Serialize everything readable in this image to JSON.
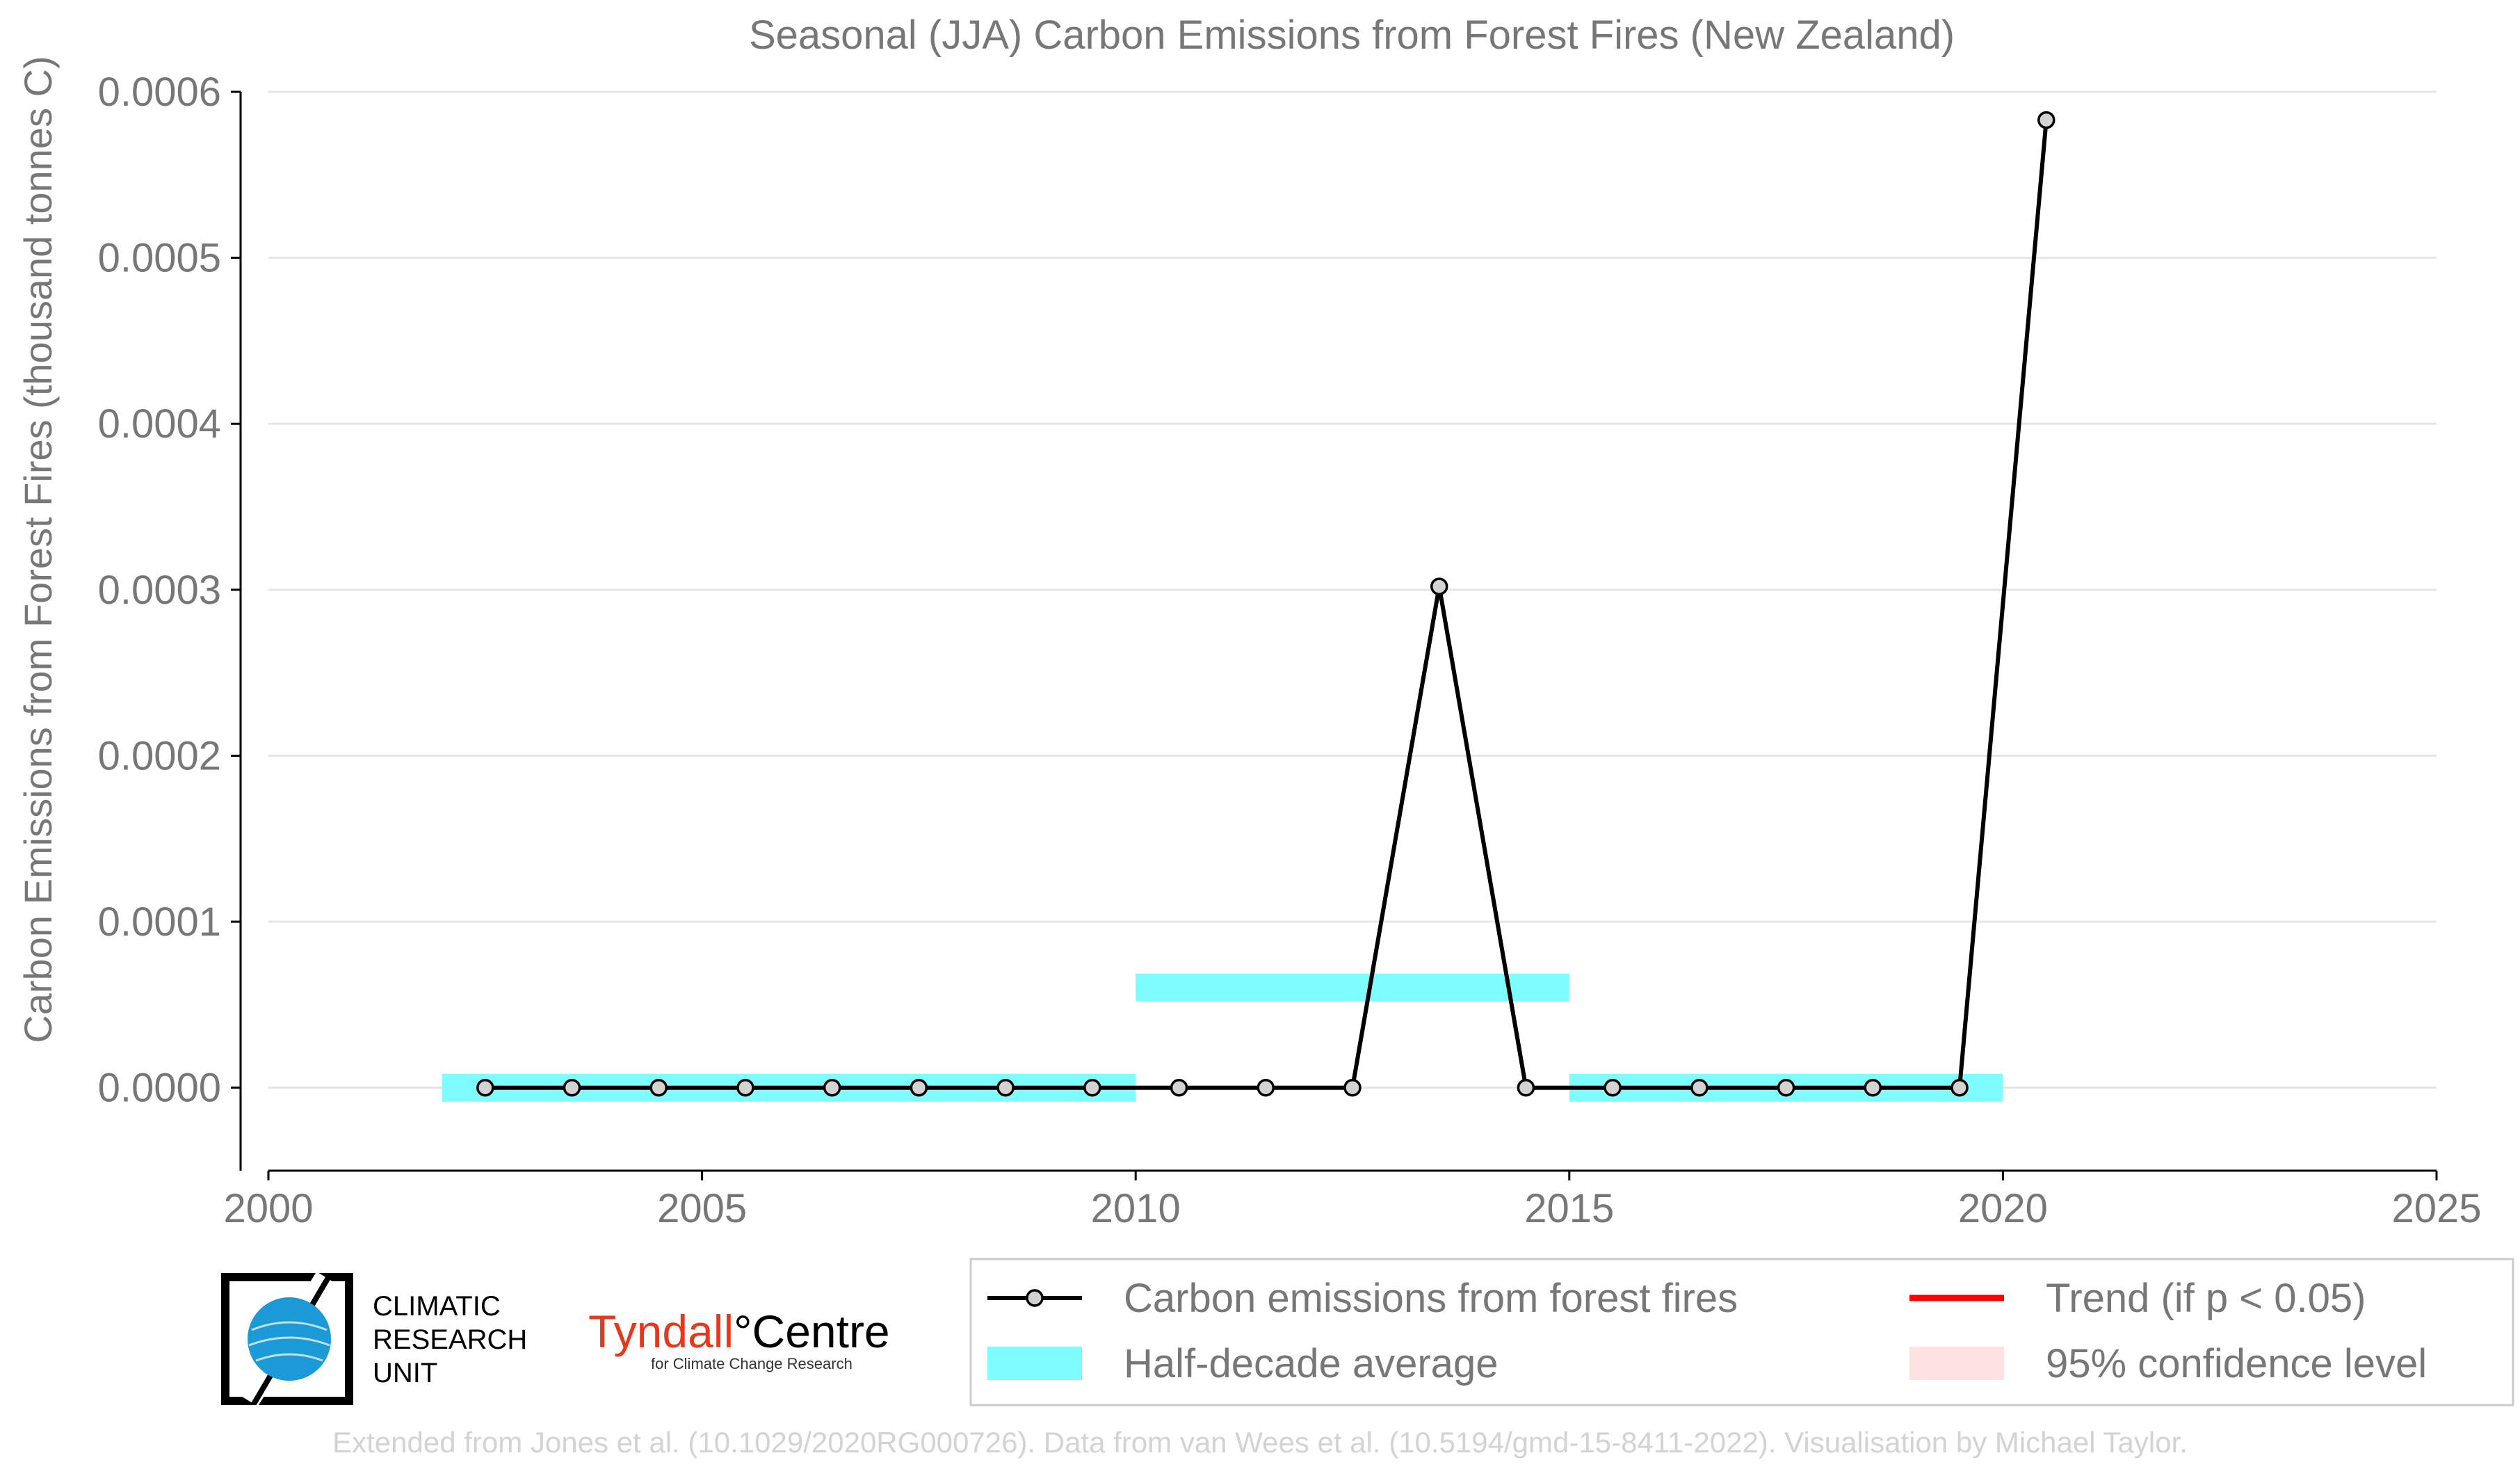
{
  "chart_data": {
    "type": "line",
    "title": "Seasonal (JJA) Carbon Emissions from Forest Fires (New Zealand)",
    "xlabel": "",
    "ylabel": "Carbon Emissions from Forest Fires (thousand tonnes C)",
    "xlim": [
      2000,
      2025
    ],
    "ylim": [
      -5e-05,
      0.0006
    ],
    "x_ticks": [
      "2000",
      "2005",
      "2010",
      "2015",
      "2020",
      "2025"
    ],
    "y_ticks": [
      "0.0000",
      "0.0001",
      "0.0002",
      "0.0003",
      "0.0004",
      "0.0005",
      "0.0006"
    ],
    "grid": "horizontal",
    "series": [
      {
        "name": "Carbon emissions from forest fires",
        "color": "#000000",
        "marker_fill": "#d3d3d3",
        "x": [
          2002.5,
          2003.5,
          2004.5,
          2005.5,
          2006.5,
          2007.5,
          2008.5,
          2009.5,
          2010.5,
          2011.5,
          2012.5,
          2013.5,
          2014.5,
          2015.5,
          2016.5,
          2017.5,
          2018.5,
          2019.5,
          2020.5
        ],
        "y": [
          0,
          0,
          0,
          0,
          0,
          0,
          0,
          0,
          0,
          0,
          0,
          0.000302,
          0,
          0,
          0,
          0,
          0,
          0,
          0.000583
        ]
      }
    ],
    "half_decade_average": {
      "name": "Half-decade average",
      "color": "#7ffcff",
      "segments": [
        {
          "x0": 2002,
          "x1": 2010,
          "y": 0
        },
        {
          "x0": 2010,
          "x1": 2015,
          "y": 6.04e-05
        },
        {
          "x0": 2015,
          "x1": 2020,
          "y": 0
        }
      ]
    },
    "legend": {
      "placement": "bottom-right",
      "entries": [
        {
          "label": "Carbon emissions from forest fires",
          "kind": "line-marker",
          "color": "#000000"
        },
        {
          "label": "Trend (if p < 0.05)",
          "kind": "line",
          "color": "#ff0000"
        },
        {
          "label": "Half-decade average",
          "kind": "band",
          "color": "#7ffcff"
        },
        {
          "label": "95% confidence level",
          "kind": "band",
          "color": "#fde2e4"
        }
      ]
    }
  },
  "logos": {
    "cru_lines": [
      "CLIMATIC",
      "RESEARCH",
      "UNIT"
    ],
    "tyndall_name": "Tyndall",
    "tyndall_degree": "°",
    "tyndall_centre": "Centre",
    "tyndall_sub": "for Climate Change Research"
  },
  "footer": "Extended from Jones et al. (10.1029/2020RG000726). Data from van Wees et al. (10.5194/gmd-15-8411-2022). Visualisation by Michael Taylor."
}
